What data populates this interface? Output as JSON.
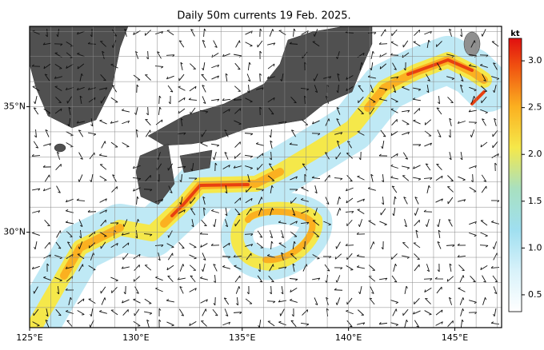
{
  "map": {
    "title": "Daily 50m currents 19 Feb. 2025.",
    "lon_range": [
      125,
      147.2
    ],
    "lat_range": [
      26.2,
      38.2
    ],
    "lon_ticks": [
      {
        "value": 125,
        "label": "125°E"
      },
      {
        "value": 130,
        "label": "130°E"
      },
      {
        "value": 135,
        "label": "135°E"
      },
      {
        "value": 140,
        "label": "140°E"
      },
      {
        "value": 145,
        "label": "145°E"
      }
    ],
    "lat_ticks": [
      {
        "value": 30,
        "label": "30°N"
      },
      {
        "value": 35,
        "label": "35°N"
      }
    ]
  },
  "colorbar": {
    "unit": "kt",
    "range": [
      0.32,
      3.24
    ],
    "ticks": [
      0.5,
      {
        "value": 1,
        "label": "1.0"
      },
      1.5,
      {
        "value": 2,
        "label": "2.0"
      },
      2.5,
      {
        "value": 3,
        "label": "3.0"
      }
    ]
  }
}
